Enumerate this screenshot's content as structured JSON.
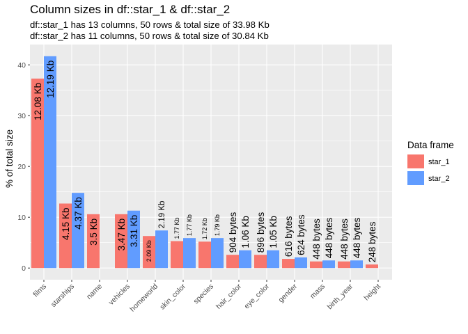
{
  "title": "Column sizes in df::star_1 & df::star_2",
  "subtitle_lines": [
    "df::star_1 has 13 columns, 50 rows & total size of 33.98 Kb",
    "df::star_2 has 11 columns, 50 rows & total size of 30.84 Kb"
  ],
  "legend": {
    "title": "Data frame"
  },
  "chart_data": {
    "type": "bar",
    "xlabel": "",
    "ylabel": "% of total size",
    "ylim": [
      -2.3,
      44
    ],
    "yticks": [
      0,
      10,
      20,
      30,
      40
    ],
    "grid": true,
    "legend_position": "right",
    "categories": [
      "films",
      "starships",
      "name",
      "vehicles",
      "homeworld",
      "skin_color",
      "species",
      "hair_color",
      "eye_color",
      "gender",
      "mass",
      "birth_year",
      "height"
    ],
    "series": [
      {
        "name": "star_1",
        "color": "#F8766D",
        "values": [
          37.3,
          12.7,
          10.6,
          10.6,
          6.3,
          5.3,
          5.2,
          2.6,
          2.6,
          1.8,
          1.3,
          1.3,
          0.7
        ],
        "labels": [
          "12.08 Kb",
          "4.15 Kb",
          "3.5 Kb",
          "3.47 Kb",
          "2.09 Kb",
          "1.77 Kb",
          "1.72 Kb",
          "904 bytes",
          "896 bytes",
          "616 bytes",
          "448 bytes",
          "448 bytes",
          "248 bytes"
        ]
      },
      {
        "name": "star_2",
        "color": "#619CFF",
        "values": [
          41.7,
          14.8,
          null,
          11.3,
          7.4,
          5.9,
          5.9,
          3.5,
          3.5,
          2.1,
          1.5,
          1.5,
          null
        ],
        "labels": [
          "12.19 Kb",
          "4.37 Kb",
          null,
          "3.31 Kb",
          "2.19 Kb",
          "1.77 Kb",
          "1.79 Kb",
          "1.06 Kb",
          "1.05 Kb",
          "624 bytes",
          "448 bytes",
          "448 bytes",
          null
        ]
      }
    ]
  }
}
